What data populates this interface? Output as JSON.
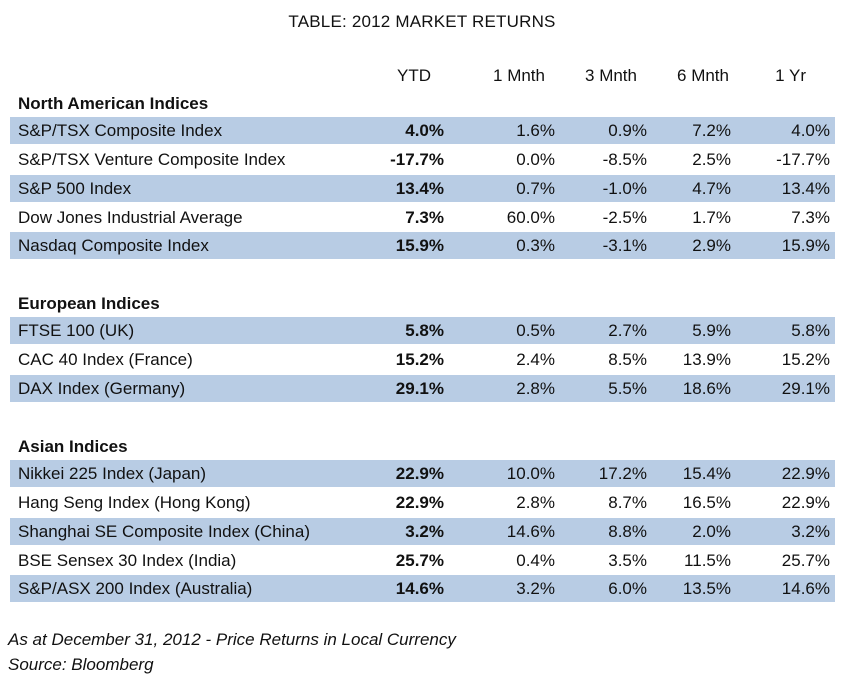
{
  "title": "TABLE: 2012 MARKET RETURNS",
  "columns": [
    "YTD",
    "1 Mnth",
    "3 Mnth",
    "6 Mnth",
    "1 Yr"
  ],
  "sections": [
    {
      "title": "North American Indices",
      "rows": [
        {
          "name": "S&P/TSX Composite Index",
          "ytd": "4.0%",
          "m1": "1.6%",
          "m3": "0.9%",
          "m6": "7.2%",
          "y1": "4.0%"
        },
        {
          "name": "S&P/TSX Venture Composite Index",
          "ytd": "-17.7%",
          "m1": "0.0%",
          "m3": "-8.5%",
          "m6": "2.5%",
          "y1": "-17.7%"
        },
        {
          "name": "S&P 500 Index",
          "ytd": "13.4%",
          "m1": "0.7%",
          "m3": "-1.0%",
          "m6": "4.7%",
          "y1": "13.4%"
        },
        {
          "name": "Dow Jones Industrial Average",
          "ytd": "7.3%",
          "m1": "60.0%",
          "m3": "-2.5%",
          "m6": "1.7%",
          "y1": "7.3%"
        },
        {
          "name": "Nasdaq Composite Index",
          "ytd": "15.9%",
          "m1": "0.3%",
          "m3": "-3.1%",
          "m6": "2.9%",
          "y1": "15.9%"
        }
      ]
    },
    {
      "title": "European Indices",
      "rows": [
        {
          "name": "FTSE 100 (UK)",
          "ytd": "5.8%",
          "m1": "0.5%",
          "m3": "2.7%",
          "m6": "5.9%",
          "y1": "5.8%"
        },
        {
          "name": "CAC 40 Index (France)",
          "ytd": "15.2%",
          "m1": "2.4%",
          "m3": "8.5%",
          "m6": "13.9%",
          "y1": "15.2%"
        },
        {
          "name": "DAX Index (Germany)",
          "ytd": "29.1%",
          "m1": "2.8%",
          "m3": "5.5%",
          "m6": "18.6%",
          "y1": "29.1%"
        }
      ]
    },
    {
      "title": "Asian Indices",
      "rows": [
        {
          "name": "Nikkei 225 Index (Japan)",
          "ytd": "22.9%",
          "m1": "10.0%",
          "m3": "17.2%",
          "m6": "15.4%",
          "y1": "22.9%"
        },
        {
          "name": "Hang Seng Index (Hong Kong)",
          "ytd": "22.9%",
          "m1": "2.8%",
          "m3": "8.7%",
          "m6": "16.5%",
          "y1": "22.9%"
        },
        {
          "name": "Shanghai SE Composite Index (China)",
          "ytd": "3.2%",
          "m1": "14.6%",
          "m3": "8.8%",
          "m6": "2.0%",
          "y1": "3.2%"
        },
        {
          "name": "BSE Sensex 30 Index (India)",
          "ytd": "25.7%",
          "m1": "0.4%",
          "m3": "3.5%",
          "m6": "11.5%",
          "y1": "25.7%"
        },
        {
          "name": "S&P/ASX 200 Index (Australia)",
          "ytd": "14.6%",
          "m1": "3.2%",
          "m3": "6.0%",
          "m6": "13.5%",
          "y1": "14.6%"
        }
      ]
    }
  ],
  "footnotes": [
    "As at December 31, 2012 - Price Returns in Local Currency",
    "Source: Bloomberg"
  ],
  "colors": {
    "row_shade": "#b8cce4"
  }
}
